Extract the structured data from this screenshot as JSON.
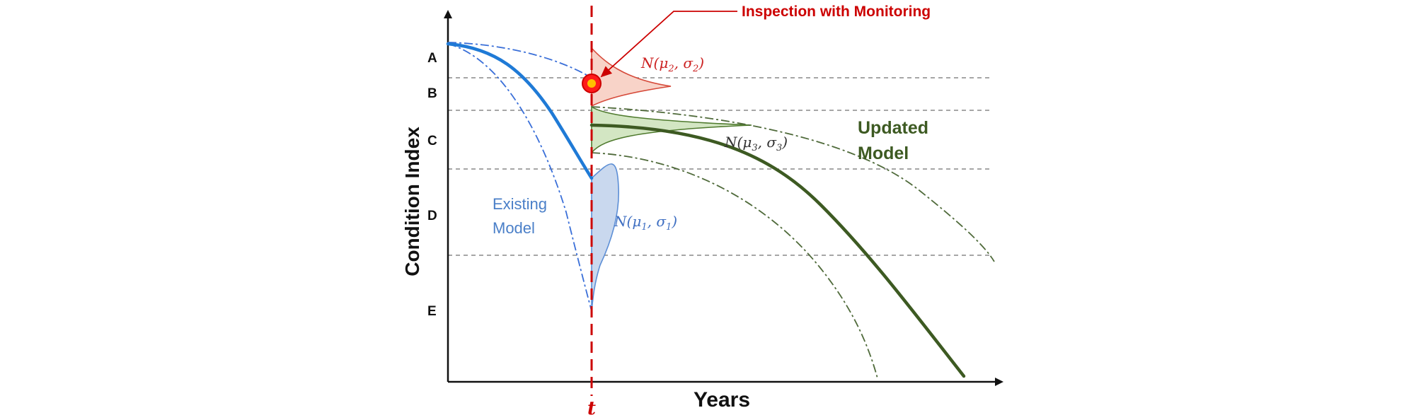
{
  "axes": {
    "y_title": "Condition Index",
    "x_title": "Years",
    "time_marker": "t"
  },
  "condition_grades": [
    "A",
    "B",
    "C",
    "D",
    "E"
  ],
  "annotations": {
    "inspection": "Inspection with Monitoring",
    "existing_model_line1": "Existing",
    "existing_model_line2": "Model",
    "updated_model_line1": "Updated",
    "updated_model_line2": "Model"
  },
  "distributions": {
    "n1": {
      "name": "N",
      "mu": "μ",
      "sigma": "σ",
      "index": "1",
      "color": "#3f6fc2"
    },
    "n2": {
      "name": "N",
      "mu": "μ",
      "sigma": "σ",
      "index": "2",
      "color": "#cc2222"
    },
    "n3": {
      "name": "N",
      "mu": "μ",
      "sigma": "σ",
      "index": "3",
      "color": "#333333"
    }
  },
  "colors": {
    "existing_curve": "#1f7ad6",
    "updated_curve": "#3d5a22",
    "inspection_line": "#cc0000",
    "existing_fill": "#c9d8ee",
    "inspection_fill": "#f8d3c8",
    "updated_fill": "#d3e6c3"
  }
}
